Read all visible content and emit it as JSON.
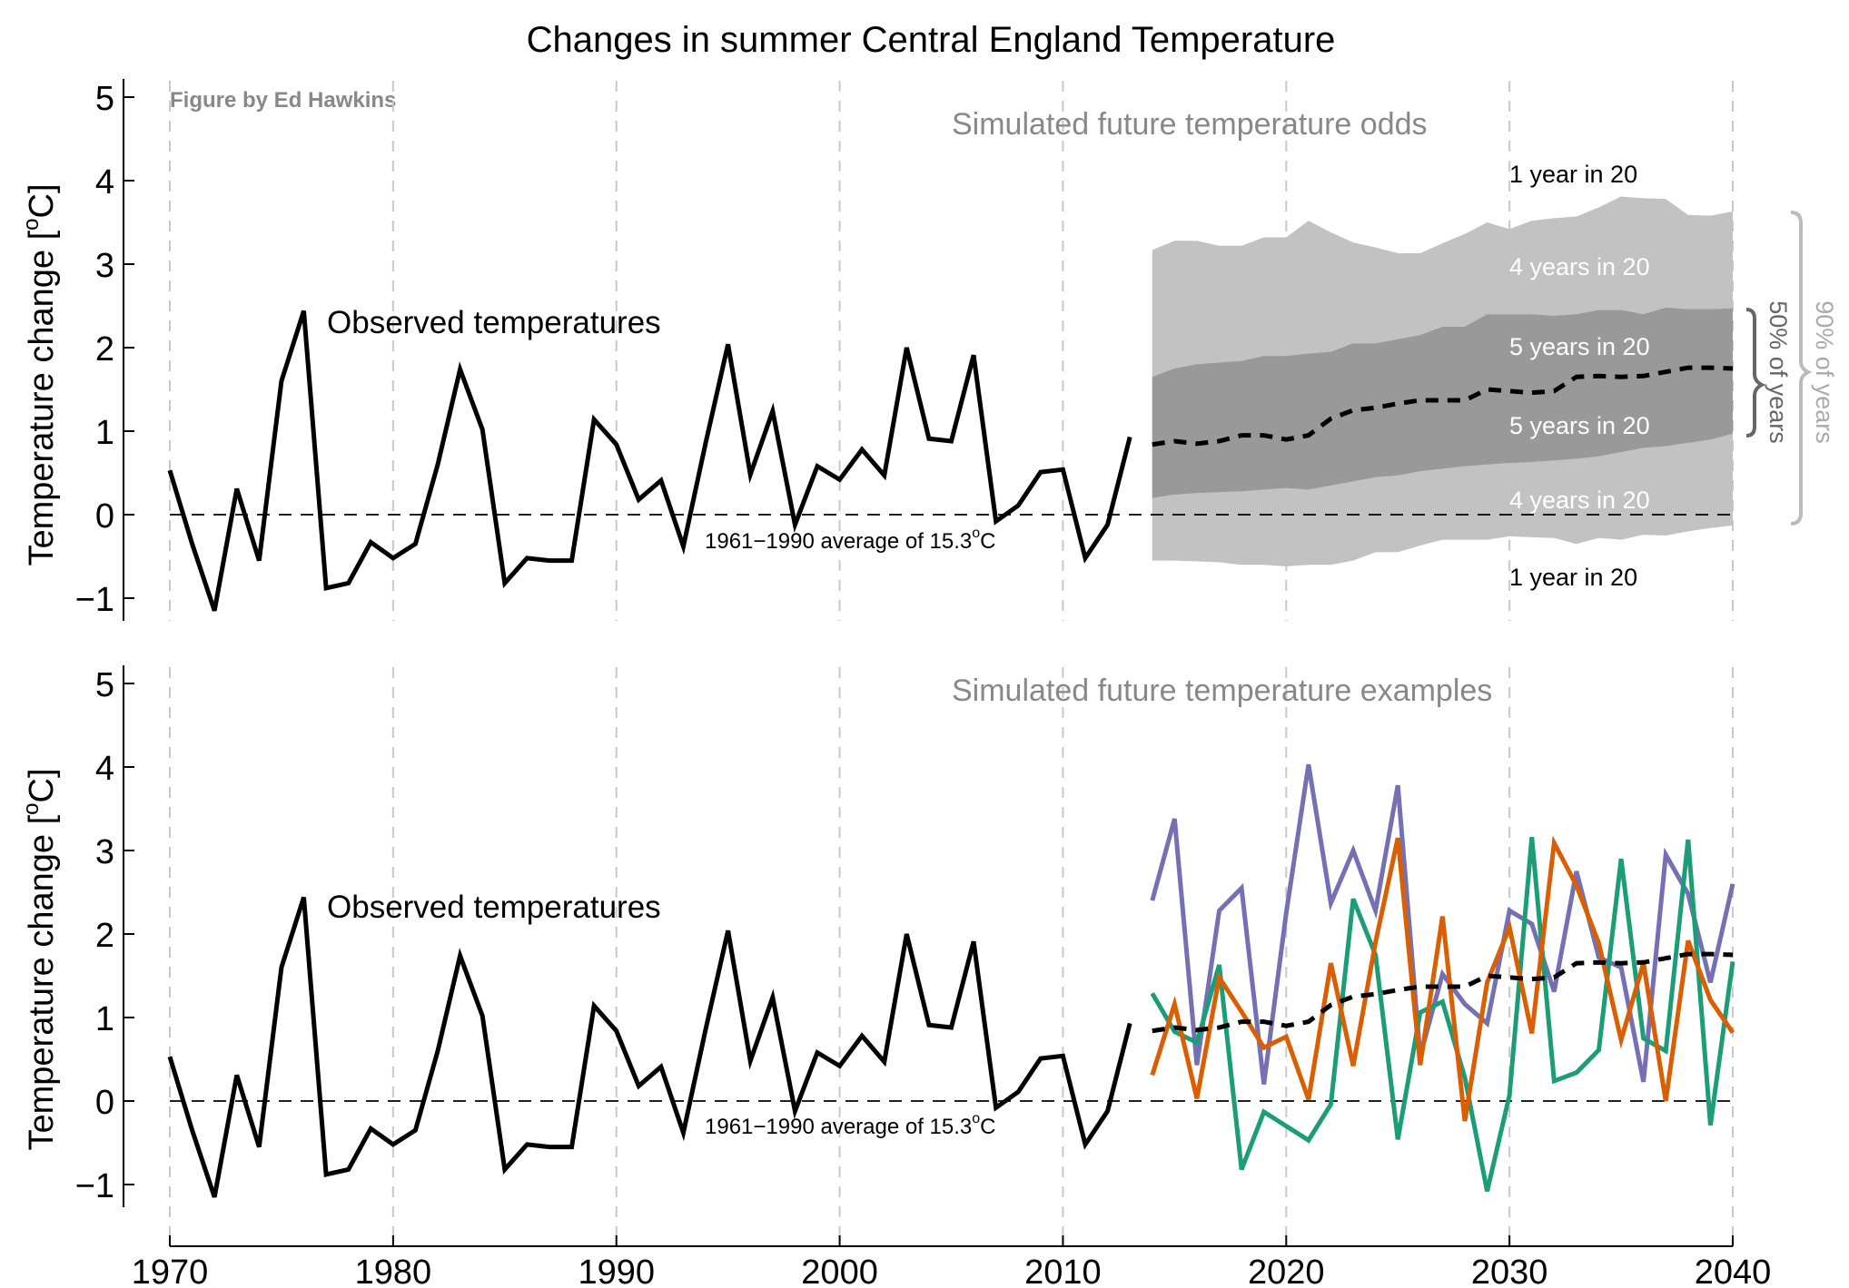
{
  "title": "Changes in summer Central England Temperature",
  "credit": "Figure by Ed Hawkins",
  "chart_data": [
    {
      "type": "line",
      "panel": "top",
      "ylabel": "Temperature change  [oC]",
      "ylabel_main": "Temperature change  [",
      "ylabel_deg": "o",
      "ylabel_end": "C]",
      "xlim": [
        1970,
        2040
      ],
      "ylim": [
        -1,
        5
      ],
      "grid": "vertical dashed",
      "x_ticks": [
        1970,
        1980,
        1990,
        2000,
        2010,
        2020,
        2030,
        2040
      ],
      "y_ticks": [
        -1,
        0,
        1,
        2,
        3,
        4,
        5
      ],
      "y_tick_labels": [
        "−1",
        "0",
        "1",
        "2",
        "3",
        "4",
        "5"
      ],
      "subtitle": "Simulated future temperature odds",
      "baseline_label_main": "1961−1990 average of 15.3",
      "baseline_label_deg": "o",
      "baseline_label_end": "C",
      "annotations": {
        "observed": "Observed temperatures",
        "band_labels": [
          "1 year in 20",
          "4 years in 20",
          "5 years in 20",
          "5 years in 20",
          "4 years in 20",
          "1 year in 20"
        ],
        "brace_50": "50% of years",
        "brace_90": "90% of years"
      },
      "series": [
        {
          "name": "Observed temperatures",
          "color": "#000000",
          "x": [
            1970,
            1971,
            1972,
            1973,
            1974,
            1975,
            1976,
            1977,
            1978,
            1979,
            1980,
            1981,
            1982,
            1983,
            1984,
            1985,
            1986,
            1987,
            1988,
            1989,
            1990,
            1991,
            1992,
            1993,
            1994,
            1995,
            1996,
            1997,
            1998,
            1999,
            2000,
            2001,
            2002,
            2003,
            2004,
            2005,
            2006,
            2007,
            2008,
            2009,
            2010,
            2011,
            2012,
            2013
          ],
          "values": [
            0.53,
            -0.35,
            -1.15,
            0.31,
            -0.55,
            1.6,
            2.44,
            -0.88,
            -0.82,
            -0.33,
            -0.52,
            -0.35,
            0.6,
            1.74,
            1.02,
            -0.82,
            -0.52,
            -0.55,
            -0.55,
            1.14,
            0.84,
            0.18,
            0.41,
            -0.38,
            0.86,
            2.04,
            0.48,
            1.24,
            -0.12,
            0.58,
            0.42,
            0.78,
            0.47,
            2.0,
            0.91,
            0.88,
            1.91,
            -0.08,
            0.11,
            0.51,
            0.54,
            -0.52,
            -0.12,
            0.93
          ]
        },
        {
          "name": "median",
          "color": "#000000",
          "x": [
            2014,
            2015,
            2016,
            2017,
            2018,
            2019,
            2020,
            2021,
            2022,
            2023,
            2024,
            2025,
            2026,
            2027,
            2028,
            2029,
            2030,
            2031,
            2032,
            2033,
            2034,
            2035,
            2036,
            2037,
            2038,
            2039,
            2040
          ],
          "values": [
            0.84,
            0.88,
            0.85,
            0.88,
            0.95,
            0.95,
            0.9,
            0.95,
            1.15,
            1.25,
            1.28,
            1.33,
            1.37,
            1.37,
            1.37,
            1.5,
            1.48,
            1.46,
            1.48,
            1.65,
            1.66,
            1.65,
            1.66,
            1.71,
            1.76,
            1.76,
            1.75
          ]
        }
      ],
      "bands": {
        "x": [
          2014,
          2015,
          2016,
          2017,
          2018,
          2019,
          2020,
          2021,
          2022,
          2023,
          2024,
          2025,
          2026,
          2027,
          2028,
          2029,
          2030,
          2031,
          2032,
          2033,
          2034,
          2035,
          2036,
          2037,
          2038,
          2039,
          2040
        ],
        "p05": [
          -0.55,
          -0.55,
          -0.56,
          -0.57,
          -0.6,
          -0.6,
          -0.62,
          -0.6,
          -0.6,
          -0.55,
          -0.45,
          -0.45,
          -0.37,
          -0.3,
          -0.3,
          -0.3,
          -0.26,
          -0.27,
          -0.28,
          -0.35,
          -0.28,
          -0.3,
          -0.24,
          -0.25,
          -0.2,
          -0.16,
          -0.13
        ],
        "p25": [
          0.2,
          0.24,
          0.26,
          0.27,
          0.28,
          0.3,
          0.32,
          0.3,
          0.35,
          0.4,
          0.45,
          0.47,
          0.52,
          0.55,
          0.58,
          0.6,
          0.62,
          0.63,
          0.65,
          0.67,
          0.7,
          0.75,
          0.8,
          0.82,
          0.86,
          0.9,
          0.97
        ],
        "p75": [
          1.65,
          1.75,
          1.8,
          1.82,
          1.84,
          1.9,
          1.9,
          1.93,
          1.95,
          2.05,
          2.05,
          2.1,
          2.15,
          2.25,
          2.25,
          2.4,
          2.4,
          2.4,
          2.38,
          2.4,
          2.45,
          2.45,
          2.4,
          2.48,
          2.46,
          2.46,
          2.47
        ],
        "p95": [
          3.17,
          3.28,
          3.28,
          3.22,
          3.22,
          3.32,
          3.32,
          3.52,
          3.38,
          3.26,
          3.2,
          3.13,
          3.13,
          3.25,
          3.36,
          3.5,
          3.42,
          3.52,
          3.55,
          3.57,
          3.68,
          3.81,
          3.79,
          3.78,
          3.59,
          3.58,
          3.63
        ],
        "color_outer": "#c2c2c2",
        "color_inner": "#999999"
      },
      "baseline": 0
    },
    {
      "type": "line",
      "panel": "bottom",
      "ylabel": "Temperature change  [oC]",
      "ylabel_main": "Temperature change  [",
      "ylabel_deg": "o",
      "ylabel_end": "C]",
      "xlim": [
        1970,
        2040
      ],
      "ylim": [
        -1,
        5
      ],
      "grid": "vertical dashed",
      "x_ticks": [
        1970,
        1980,
        1990,
        2000,
        2010,
        2020,
        2030,
        2040
      ],
      "x_tick_labels": [
        "1970",
        "1980",
        "1990",
        "2000",
        "2010",
        "2020",
        "2030",
        "2040"
      ],
      "y_ticks": [
        -1,
        0,
        1,
        2,
        3,
        4,
        5
      ],
      "y_tick_labels": [
        "−1",
        "0",
        "1",
        "2",
        "3",
        "4",
        "5"
      ],
      "subtitle": "Simulated future temperature examples",
      "baseline_label_main": "1961−1990 average of 15.3",
      "baseline_label_deg": "o",
      "baseline_label_end": "C",
      "annotations": {
        "observed": "Observed temperatures"
      },
      "series": [
        {
          "name": "Observed temperatures",
          "color": "#000000",
          "x": [
            1970,
            1971,
            1972,
            1973,
            1974,
            1975,
            1976,
            1977,
            1978,
            1979,
            1980,
            1981,
            1982,
            1983,
            1984,
            1985,
            1986,
            1987,
            1988,
            1989,
            1990,
            1991,
            1992,
            1993,
            1994,
            1995,
            1996,
            1997,
            1998,
            1999,
            2000,
            2001,
            2002,
            2003,
            2004,
            2005,
            2006,
            2007,
            2008,
            2009,
            2010,
            2011,
            2012,
            2013
          ],
          "values": [
            0.53,
            -0.35,
            -1.15,
            0.31,
            -0.55,
            1.6,
            2.44,
            -0.88,
            -0.82,
            -0.33,
            -0.52,
            -0.35,
            0.6,
            1.74,
            1.02,
            -0.82,
            -0.52,
            -0.55,
            -0.55,
            1.14,
            0.84,
            0.18,
            0.41,
            -0.38,
            0.86,
            2.04,
            0.48,
            1.24,
            -0.12,
            0.58,
            0.42,
            0.78,
            0.47,
            2.0,
            0.91,
            0.88,
            1.91,
            -0.08,
            0.11,
            0.51,
            0.54,
            -0.52,
            -0.12,
            0.93
          ]
        },
        {
          "name": "median",
          "color": "#000000",
          "x": [
            2014,
            2015,
            2016,
            2017,
            2018,
            2019,
            2020,
            2021,
            2022,
            2023,
            2024,
            2025,
            2026,
            2027,
            2028,
            2029,
            2030,
            2031,
            2032,
            2033,
            2034,
            2035,
            2036,
            2037,
            2038,
            2039,
            2040
          ],
          "values": [
            0.84,
            0.88,
            0.85,
            0.88,
            0.95,
            0.95,
            0.9,
            0.95,
            1.15,
            1.25,
            1.28,
            1.33,
            1.37,
            1.37,
            1.37,
            1.5,
            1.48,
            1.46,
            1.48,
            1.65,
            1.66,
            1.65,
            1.66,
            1.71,
            1.76,
            1.76,
            1.75
          ]
        },
        {
          "name": "purple",
          "color": "#7570b3",
          "x": [
            2014,
            2015,
            2016,
            2017,
            2018,
            2019,
            2020,
            2021,
            2022,
            2023,
            2024,
            2025,
            2026,
            2027,
            2028,
            2029,
            2030,
            2031,
            2032,
            2033,
            2034,
            2035,
            2036,
            2037,
            2038,
            2039,
            2040
          ],
          "values": [
            2.4,
            3.38,
            0.43,
            2.28,
            2.55,
            0.2,
            2.25,
            4.03,
            2.37,
            3.0,
            2.28,
            3.78,
            0.54,
            1.52,
            1.16,
            0.93,
            2.28,
            2.12,
            1.31,
            2.75,
            1.72,
            1.6,
            0.23,
            2.95,
            2.48,
            1.42,
            2.6
          ]
        },
        {
          "name": "green",
          "color": "#1b9e77",
          "x": [
            2014,
            2015,
            2016,
            2017,
            2018,
            2019,
            2020,
            2021,
            2022,
            2023,
            2024,
            2025,
            2026,
            2027,
            2028,
            2029,
            2030,
            2031,
            2032,
            2033,
            2034,
            2035,
            2036,
            2037,
            2038,
            2039,
            2040
          ],
          "values": [
            1.29,
            0.83,
            0.7,
            1.63,
            -0.82,
            -0.13,
            -0.3,
            -0.47,
            -0.04,
            2.42,
            1.75,
            -0.46,
            1.06,
            1.19,
            0.28,
            -1.08,
            0.07,
            3.16,
            0.24,
            0.34,
            0.61,
            2.9,
            0.75,
            0.6,
            3.13,
            -0.29,
            1.67
          ]
        },
        {
          "name": "orange",
          "color": "#d95f02",
          "x": [
            2014,
            2015,
            2016,
            2017,
            2018,
            2019,
            2020,
            2021,
            2022,
            2023,
            2024,
            2025,
            2026,
            2027,
            2028,
            2029,
            2030,
            2031,
            2032,
            2033,
            2034,
            2035,
            2036,
            2037,
            2038,
            2039,
            2040
          ],
          "values": [
            0.31,
            1.16,
            0.03,
            1.48,
            1.07,
            0.64,
            0.77,
            0.02,
            1.65,
            0.42,
            1.9,
            3.15,
            0.43,
            2.21,
            -0.24,
            1.42,
            2.08,
            0.81,
            3.09,
            2.58,
            1.89,
            0.73,
            1.65,
            0.0,
            1.92,
            1.21,
            0.82
          ]
        }
      ],
      "baseline": 0
    }
  ]
}
